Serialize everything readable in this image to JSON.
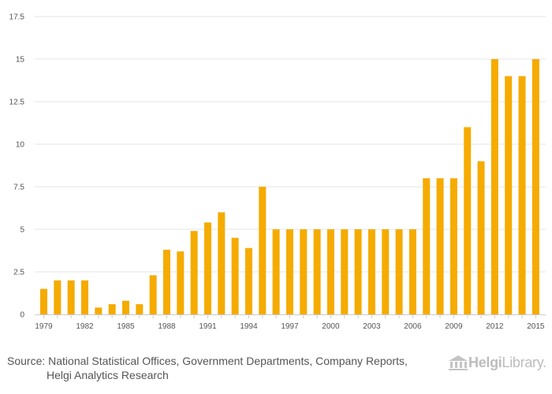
{
  "chart_data": {
    "type": "bar",
    "title": "",
    "xlabel": "",
    "ylabel": "",
    "color": "#F5AB00",
    "ylim": [
      0,
      17.5
    ],
    "yticks": [
      0,
      2.5,
      5,
      7.5,
      10,
      12.5,
      15,
      17.5
    ],
    "ytick_labels": [
      "0",
      "2.5",
      "5",
      "7.5",
      "10",
      "12.5",
      "15",
      "17.5"
    ],
    "xtick_labels": [
      "1979",
      "1982",
      "1985",
      "1988",
      "1991",
      "1994",
      "1997",
      "2000",
      "2003",
      "2006",
      "2009",
      "2012",
      "2015"
    ],
    "categories": [
      "1979",
      "1980",
      "1981",
      "1982",
      "1983",
      "1984",
      "1985",
      "1986",
      "1987",
      "1988",
      "1989",
      "1990",
      "1991",
      "1992",
      "1993",
      "1994",
      "1995",
      "1996",
      "1997",
      "1998",
      "1999",
      "2000",
      "2001",
      "2002",
      "2003",
      "2004",
      "2005",
      "2006",
      "2007",
      "2008",
      "2009",
      "2010",
      "2011",
      "2012",
      "2013",
      "2014",
      "2015"
    ],
    "values": [
      1.5,
      2,
      2,
      2,
      0.4,
      0.6,
      0.8,
      0.6,
      2.3,
      3.8,
      3.7,
      4.9,
      5.4,
      6,
      4.5,
      3.9,
      7.5,
      5,
      5,
      5,
      5,
      5,
      5,
      5,
      5,
      5,
      5,
      5,
      8,
      8,
      8,
      11,
      9,
      15,
      14,
      14,
      15
    ]
  },
  "footer": {
    "source_line1": "Source: National Statistical Offices, Government Departments, Company Reports,",
    "source_line2": "Helgi Analytics Research",
    "logo_text_bold": "Helgi",
    "logo_text_rest": "Library."
  }
}
